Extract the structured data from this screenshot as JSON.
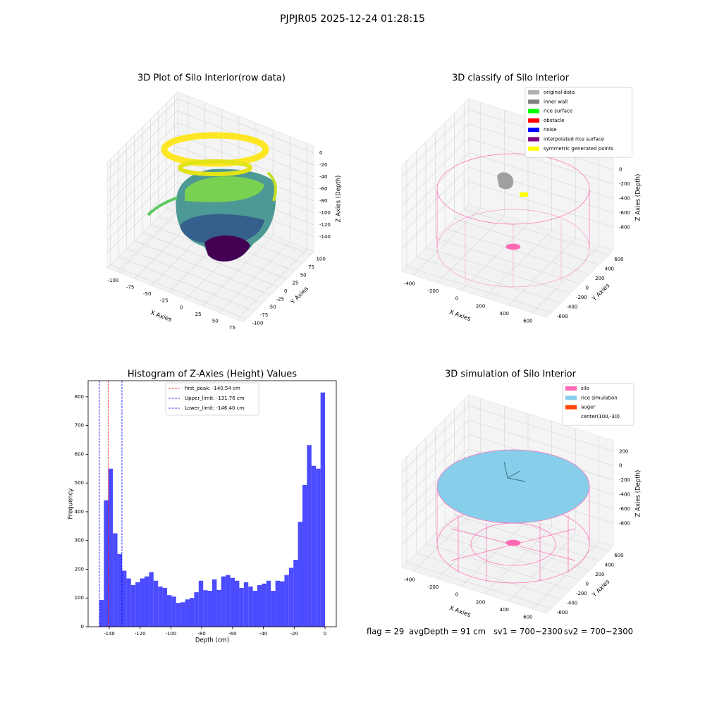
{
  "title": "PJPJR05 2025-12-24 01:28:15",
  "chart_data": [
    {
      "type": "scatter3d",
      "title": "3D Plot of Silo Interior(row data)",
      "xlabel": "X Axies",
      "ylabel": "Y Axies",
      "zlabel": "Z Axies (Depth)",
      "xlim": [
        -115,
        85
      ],
      "ylim": [
        -110,
        110
      ],
      "zlim": [
        -165,
        12
      ],
      "xticks": [
        -100,
        -75,
        -50,
        -25,
        0,
        25,
        50,
        75
      ],
      "yticks": [
        -100,
        -75,
        -50,
        -25,
        0,
        25,
        50,
        75,
        100
      ],
      "zticks": [
        -140,
        -120,
        -100,
        -80,
        -60,
        -40,
        -20,
        0
      ]
    },
    {
      "type": "scatter3d",
      "title": "3D classify of Silo Interior",
      "xlabel": "X Axies",
      "ylabel": "Y Axies",
      "zlabel": "Z Axies (Depth)",
      "xlim": [
        -500,
        720
      ],
      "ylim": [
        -700,
        700
      ],
      "zlim": [
        -1120,
        350
      ],
      "xticks": [
        -400,
        -200,
        0,
        200,
        400,
        600
      ],
      "yticks": [
        -600,
        -400,
        -200,
        0,
        200,
        400,
        600
      ],
      "zticks": [
        -800,
        -600,
        -400,
        -200,
        0,
        200
      ],
      "legend": [
        {
          "name": "original data",
          "color": "#b0b0b0"
        },
        {
          "name": "inner wall",
          "color": "#808080"
        },
        {
          "name": "rice surface",
          "color": "#00ff00"
        },
        {
          "name": "obstacle",
          "color": "#ff0000"
        },
        {
          "name": "noise",
          "color": "#0000ff"
        },
        {
          "name": "interpolated rice surface",
          "color": "#800080"
        },
        {
          "name": "symmetric generated points",
          "color": "#ffff00"
        }
      ]
    },
    {
      "type": "scatter3d",
      "title": "3D simulation of Silo Interior",
      "xlabel": "X Axies",
      "ylabel": "Y Axies",
      "zlabel": "Z Axies (Depth)",
      "xlim": [
        -500,
        720
      ],
      "ylim": [
        -700,
        700
      ],
      "zlim": [
        -1120,
        350
      ],
      "xticks": [
        -400,
        -200,
        0,
        200,
        400,
        600
      ],
      "yticks": [
        -600,
        -400,
        -200,
        0,
        200,
        400,
        600
      ],
      "zticks": [
        -800,
        -600,
        -400,
        -200,
        0,
        200
      ],
      "legend": [
        {
          "name": "silo",
          "color": "#ff69b4"
        },
        {
          "name": "rice simulation",
          "color": "#87ceeb"
        },
        {
          "name": "auger",
          "color": "#ff4500"
        },
        {
          "name": "center(100,-30)"
        }
      ]
    },
    {
      "type": "histogram",
      "title": "Histogram of Z-Axies (Height) Values",
      "xlabel": "Depth (cm)",
      "ylabel": "Frequency",
      "color": "#4b4bff",
      "bins": [
        -146.4,
        -143.472,
        -140.544,
        -137.616,
        -134.688,
        -131.76,
        -128.832,
        -125.904,
        -122.976,
        -120.048,
        -117.12,
        -114.192,
        -111.264,
        -108.336,
        -105.408,
        -102.48,
        -99.552,
        -96.624,
        -93.696,
        -90.768,
        -87.84,
        -84.912,
        -81.984,
        -79.056,
        -76.128,
        -73.2,
        -70.272,
        -67.344,
        -64.416,
        -61.488,
        -58.56,
        -55.632,
        -52.704,
        -49.776,
        -46.848,
        -43.92,
        -40.992,
        -38.064,
        -35.136,
        -32.208,
        -29.28,
        -26.352,
        -23.424,
        -20.496,
        -17.568,
        -14.64,
        -11.712,
        -8.784,
        -5.856,
        -2.928,
        0
      ],
      "counts": [
        93,
        440,
        550,
        325,
        253,
        195,
        168,
        145,
        155,
        168,
        175,
        190,
        160,
        140,
        135,
        110,
        105,
        83,
        85,
        95,
        100,
        120,
        160,
        127,
        125,
        165,
        128,
        175,
        180,
        170,
        160,
        135,
        155,
        140,
        125,
        145,
        150,
        160,
        125,
        160,
        158,
        180,
        205,
        233,
        365,
        493,
        632,
        560,
        550,
        815
      ],
      "xlim": [
        -153.7,
        7.3
      ],
      "ylim": [
        0,
        856
      ],
      "xticks": [
        -140,
        -120,
        -100,
        -80,
        -60,
        -40,
        -20,
        0
      ],
      "yticks": [
        0,
        100,
        200,
        300,
        400,
        500,
        600,
        700,
        800
      ],
      "reference_lines": [
        {
          "label": "first_peak: -140.54 cm",
          "value": -140.54,
          "color": "#ff0000"
        },
        {
          "label": "Upper_limit: -131.76 cm",
          "value": -131.76,
          "color": "#0000ff"
        },
        {
          "label": "Lower_limit: -146.40 cm",
          "value": -146.4,
          "color": "#0000ff"
        }
      ]
    }
  ],
  "footer": [
    "flag = 29",
    "avgDepth = 91 cm",
    "sv1 = 700~2300",
    "sv2 = 700~2300"
  ]
}
